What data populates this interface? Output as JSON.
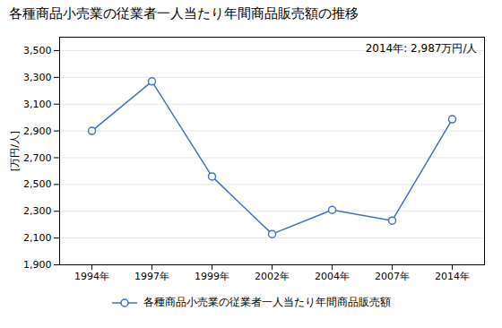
{
  "chart_data": {
    "type": "line",
    "title": "各種商品小売業の従業者一人当たり年間商品販売額の推移",
    "ylabel": "[万円/人]",
    "annotation": "2014年: 2,987万円/人",
    "categories": [
      "1994年",
      "1997年",
      "1999年",
      "2002年",
      "2004年",
      "2007年",
      "2014年"
    ],
    "series": [
      {
        "name": "各種商品小売業の従業者一人当たり年間商品販売額",
        "color": "#4472C4",
        "marker": "circle",
        "values": [
          2900,
          3270,
          2560,
          2130,
          2310,
          2230,
          2987
        ]
      }
    ],
    "ylim": [
      1900,
      3600
    ],
    "yticks": [
      {
        "value": 1900,
        "label": "1,900"
      },
      {
        "value": 2100,
        "label": "2,100"
      },
      {
        "value": 2300,
        "label": "2,300"
      },
      {
        "value": 2500,
        "label": "2,500"
      },
      {
        "value": 2700,
        "label": "2,700"
      },
      {
        "value": 2900,
        "label": "2,900"
      },
      {
        "value": 3100,
        "label": "3,100"
      },
      {
        "value": 3300,
        "label": "3,300"
      },
      {
        "value": 3500,
        "label": "3,500"
      }
    ],
    "grid": true,
    "legend": "bottom"
  }
}
